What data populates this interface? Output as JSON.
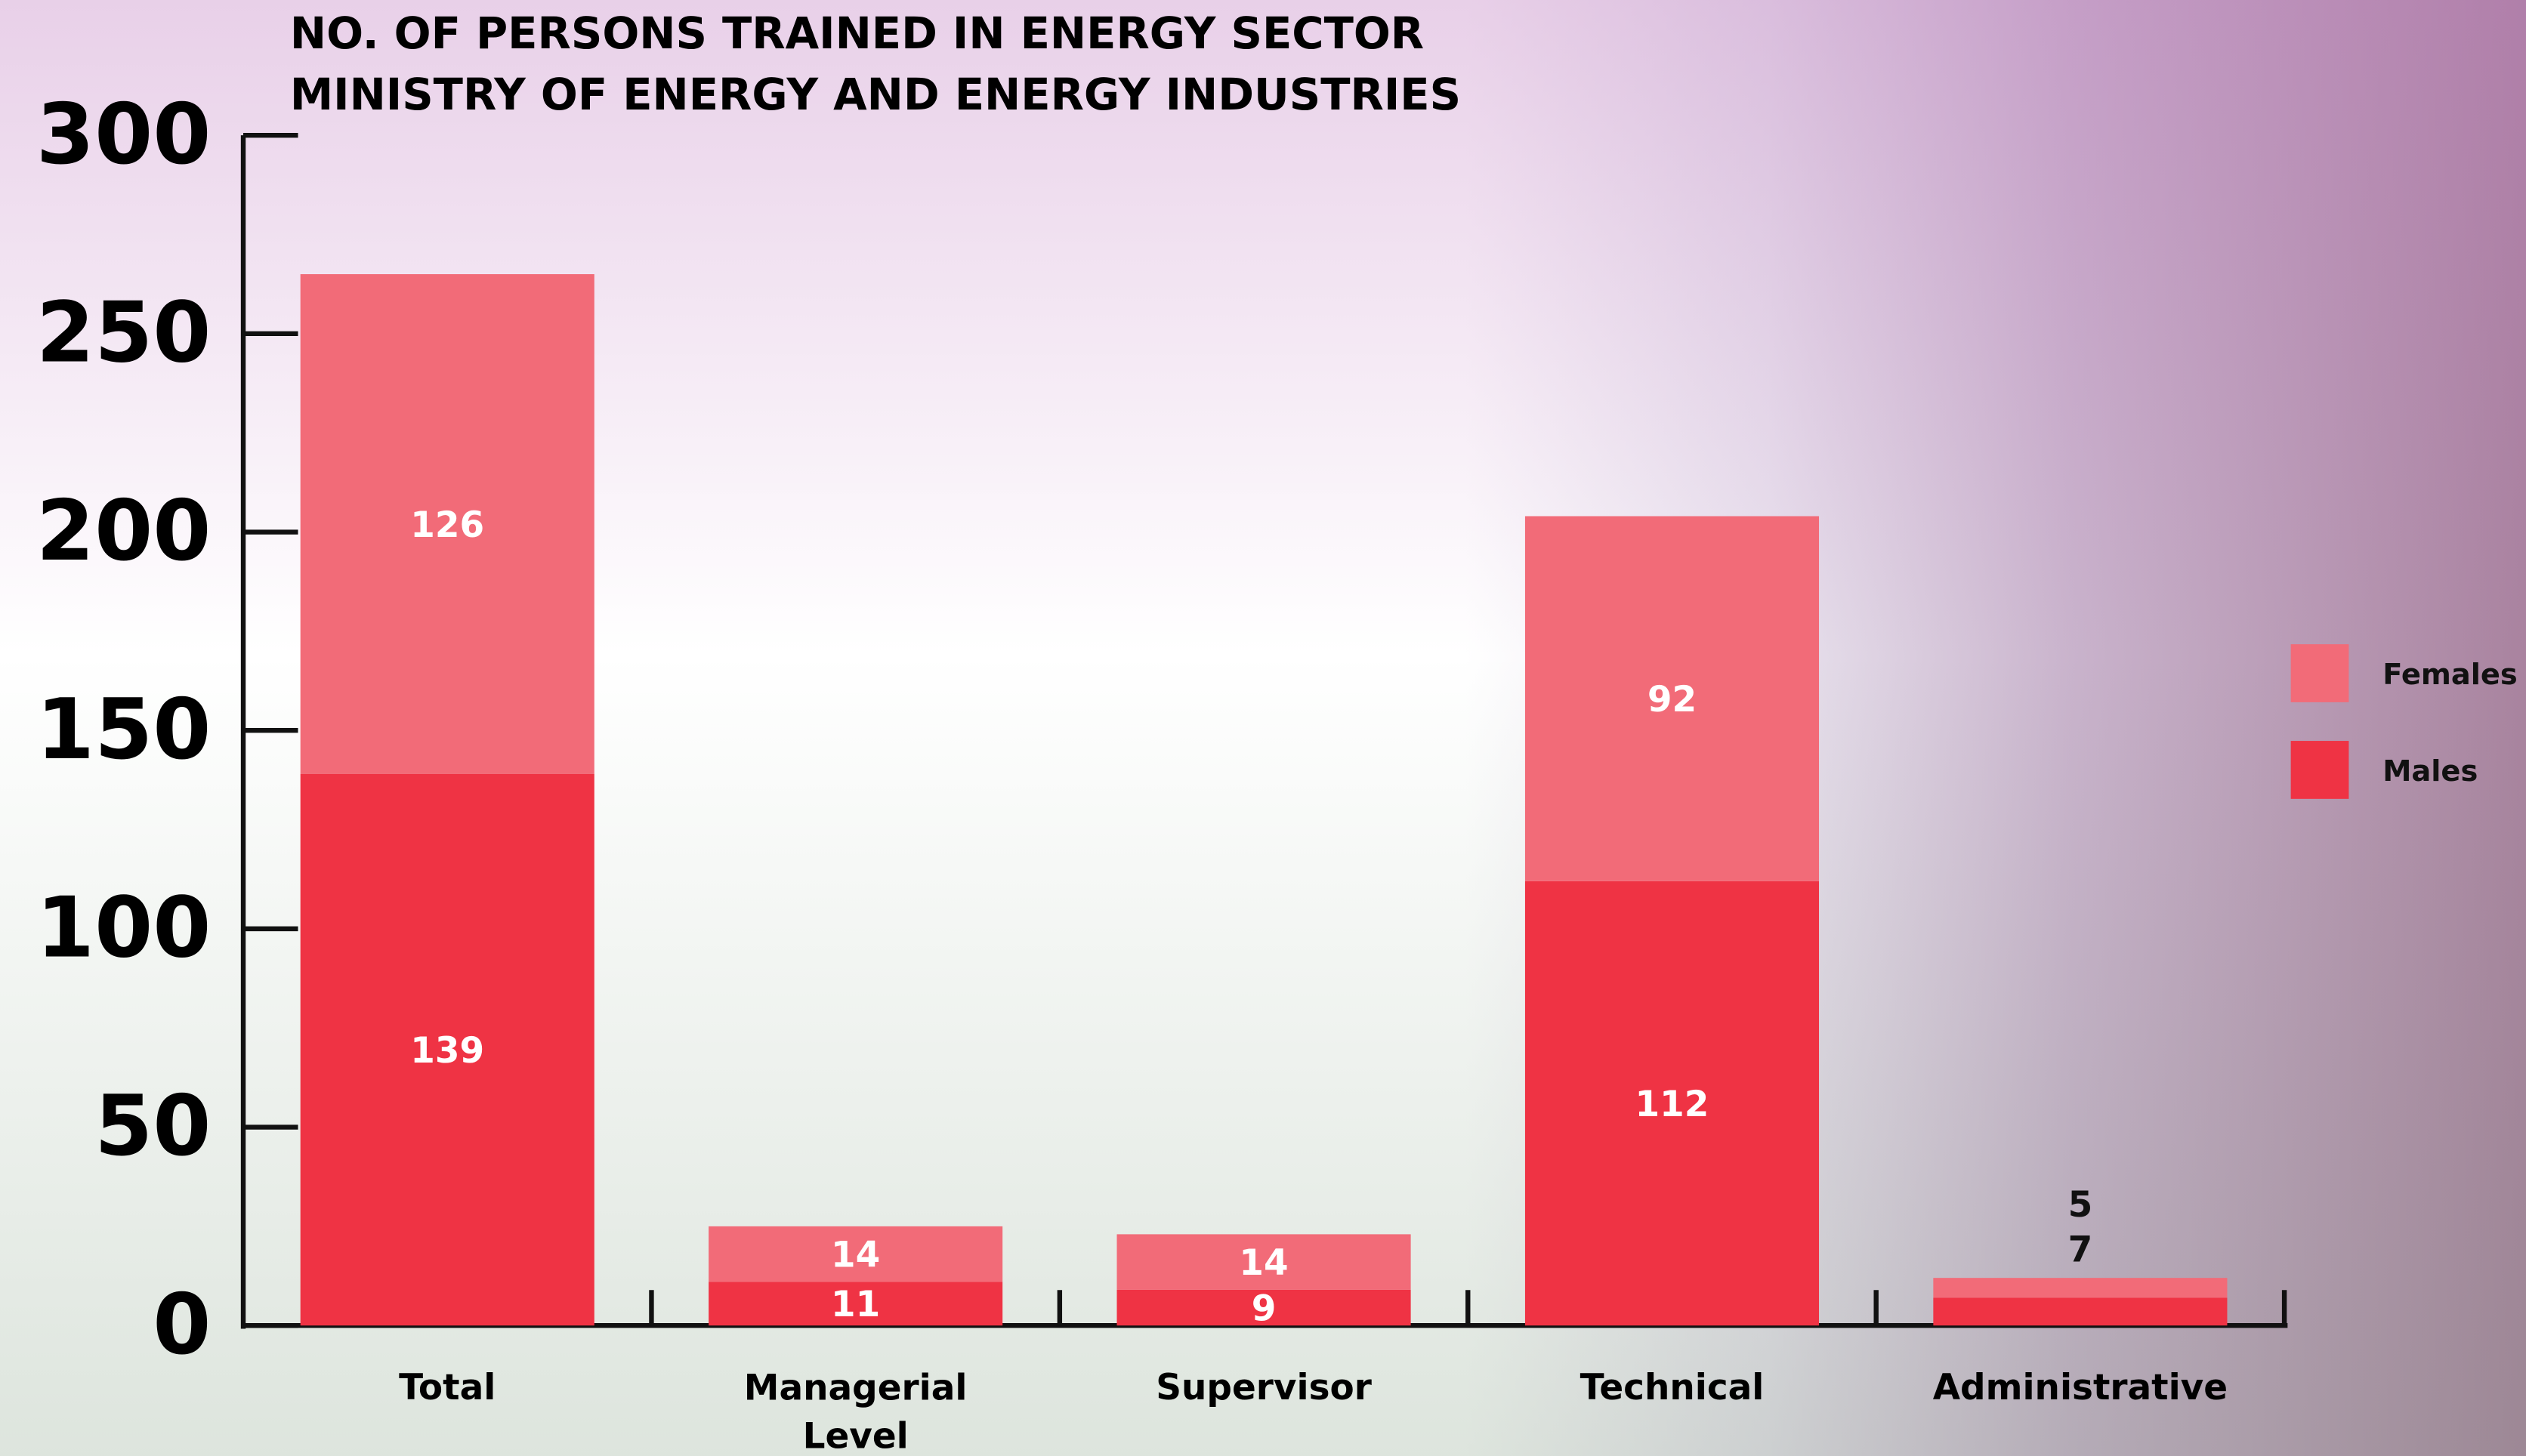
{
  "chart_data": {
    "type": "stacked-bar",
    "title": "NO. OF PERSONS TRAINED IN ENERGY SECTOR",
    "subtitle": "MINISTRY OF ENERGY AND ENERGY INDUSTRIES",
    "categories": [
      "Total",
      "Managerial Level",
      "Supervisor",
      "Technical",
      "Administrative"
    ],
    "series": [
      {
        "name": "Males",
        "color": "#ef3344",
        "values": [
          139,
          11,
          9,
          112,
          7
        ]
      },
      {
        "name": "Females",
        "color": "#f26b78",
        "values": [
          126,
          14,
          14,
          92,
          5
        ]
      }
    ],
    "ylim": [
      0,
      300
    ],
    "yticks": [
      0,
      50,
      100,
      150,
      200,
      250,
      300
    ],
    "legend": "right"
  }
}
